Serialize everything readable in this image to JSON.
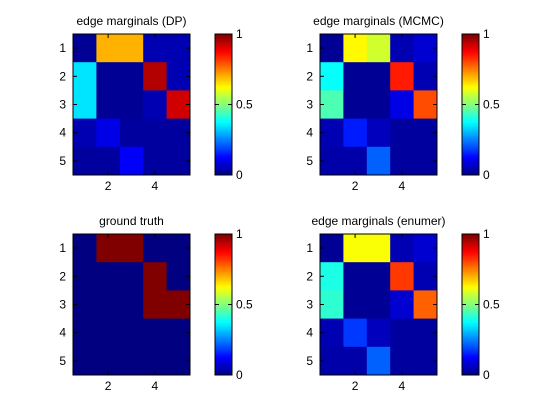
{
  "chart_data": [
    {
      "type": "heatmap",
      "title": "edge marginals (DP)",
      "xticks": [
        "2",
        "4"
      ],
      "yticks": [
        "1",
        "2",
        "3",
        "4",
        "5"
      ],
      "colorbar_ticks": [
        "0",
        "0.5",
        "1"
      ],
      "clim": [
        0,
        1
      ],
      "colormap": "jet",
      "matrix": [
        [
          0.02,
          0.7,
          0.7,
          0.05,
          0.05
        ],
        [
          0.35,
          0.02,
          0.02,
          0.95,
          0.05
        ],
        [
          0.35,
          0.02,
          0.02,
          0.05,
          0.92
        ],
        [
          0.05,
          0.1,
          0.03,
          0.03,
          0.03
        ],
        [
          0.03,
          0.03,
          0.12,
          0.03,
          0.03
        ]
      ]
    },
    {
      "type": "heatmap",
      "title": "edge marginals (MCMC)",
      "xticks": [
        "2",
        "4"
      ],
      "yticks": [
        "1",
        "2",
        "3",
        "4",
        "5"
      ],
      "colorbar_ticks": [
        "0",
        "0.5",
        "1"
      ],
      "clim": [
        0,
        1
      ],
      "colormap": "jet",
      "matrix": [
        [
          0.02,
          0.63,
          0.58,
          0.05,
          0.08
        ],
        [
          0.38,
          0.02,
          0.02,
          0.85,
          0.05
        ],
        [
          0.45,
          0.02,
          0.02,
          0.1,
          0.8
        ],
        [
          0.05,
          0.15,
          0.06,
          0.03,
          0.03
        ],
        [
          0.04,
          0.04,
          0.22,
          0.03,
          0.03
        ]
      ]
    },
    {
      "type": "heatmap",
      "title": "ground truth",
      "xticks": [
        "2",
        "4"
      ],
      "yticks": [
        "1",
        "2",
        "3",
        "4",
        "5"
      ],
      "colorbar_ticks": [
        "0",
        "0.5",
        "1"
      ],
      "clim": [
        0,
        1
      ],
      "colormap": "jet",
      "matrix": [
        [
          0,
          1,
          1,
          0,
          0
        ],
        [
          0,
          0,
          0,
          1,
          0
        ],
        [
          0,
          0,
          0,
          1,
          1
        ],
        [
          0,
          0,
          0,
          0,
          0
        ],
        [
          0,
          0,
          0,
          0,
          0
        ]
      ]
    },
    {
      "type": "heatmap",
      "title": "edge marginals (enumer)",
      "xticks": [
        "2",
        "4"
      ],
      "yticks": [
        "1",
        "2",
        "3",
        "4",
        "5"
      ],
      "colorbar_ticks": [
        "0",
        "0.5",
        "1"
      ],
      "clim": [
        0,
        1
      ],
      "colormap": "jet",
      "matrix": [
        [
          0.02,
          0.62,
          0.62,
          0.05,
          0.08
        ],
        [
          0.4,
          0.02,
          0.02,
          0.82,
          0.05
        ],
        [
          0.42,
          0.02,
          0.02,
          0.08,
          0.78
        ],
        [
          0.05,
          0.18,
          0.06,
          0.03,
          0.03
        ],
        [
          0.04,
          0.04,
          0.22,
          0.03,
          0.03
        ]
      ]
    }
  ]
}
